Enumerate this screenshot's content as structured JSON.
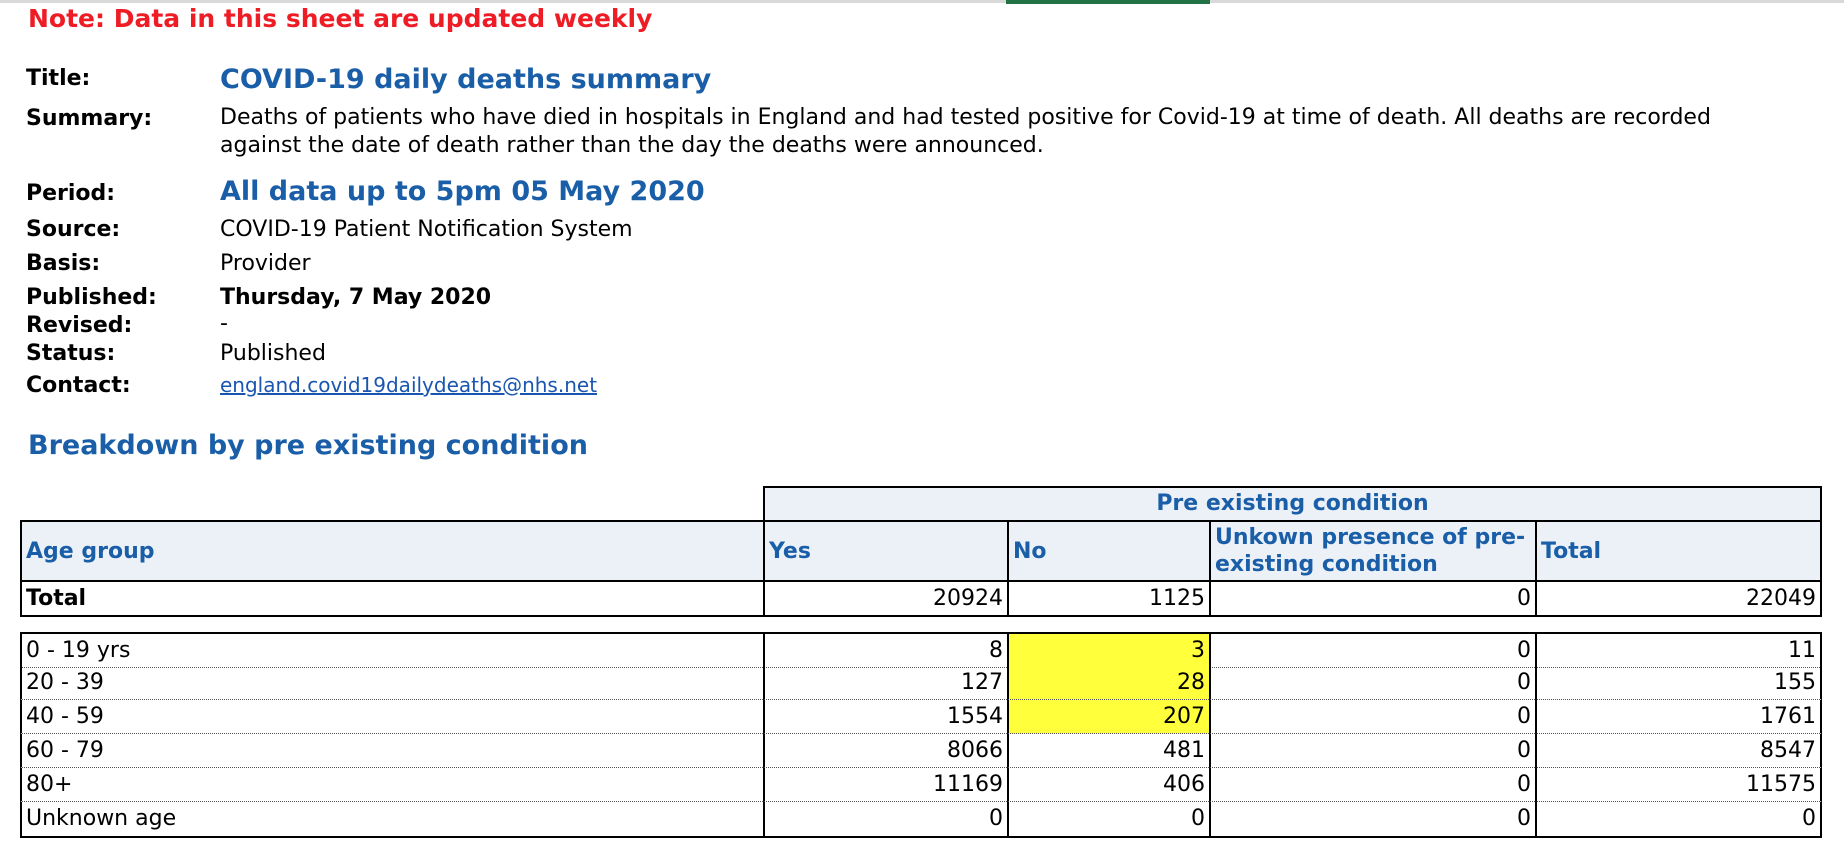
{
  "note": "Note: Data in this sheet are updated weekly",
  "meta": {
    "title_label": "Title:",
    "title_value": "COVID-19 daily deaths summary",
    "summary_label": "Summary:",
    "summary_value": "Deaths of patients who have died in hospitals in England and had tested positive for Covid-19 at time of death. All deaths are recorded against the date of death rather than the day the deaths were announced.",
    "period_label": "Period:",
    "period_value": "All data up to 5pm 05 May 2020",
    "source_label": "Source:",
    "source_value": "COVID-19 Patient Notification System",
    "basis_label": "Basis:",
    "basis_value": "Provider",
    "published_label": "Published:",
    "published_value": "Thursday, 7 May 2020",
    "revised_label": "Revised:",
    "revised_value": "-",
    "status_label": "Status:",
    "status_value": "Published",
    "contact_label": "Contact:",
    "contact_value": "england.covid19dailydeaths@nhs.net"
  },
  "section_title": "Breakdown by pre existing condition",
  "table": {
    "group_header": "Pre existing condition",
    "headers": [
      "Age group",
      "Yes",
      "No",
      "Unkown presence of pre-existing condition",
      "Total"
    ],
    "total_row": [
      "Total",
      "20924",
      "1125",
      "0",
      "22049"
    ],
    "rows": [
      [
        "0 - 19 yrs",
        "8",
        "3",
        "0",
        "11"
      ],
      [
        "20 - 39",
        "127",
        "28",
        "0",
        "155"
      ],
      [
        "40 - 59",
        "1554",
        "207",
        "0",
        "1761"
      ],
      [
        "60 - 79",
        "8066",
        "481",
        "0",
        "8547"
      ],
      [
        "80+",
        "11169",
        "406",
        "0",
        "11575"
      ],
      [
        "Unknown age",
        "0",
        "0",
        "0",
        "0"
      ]
    ],
    "highlight_color": "#ffff3c",
    "header_text_color": "#1a5ea8",
    "header_bg_color": "#ecf1f8"
  },
  "colors": {
    "note": "#ee1c25",
    "accent_blue": "#1a5ea8",
    "sheet_tab_active": "#217346"
  }
}
